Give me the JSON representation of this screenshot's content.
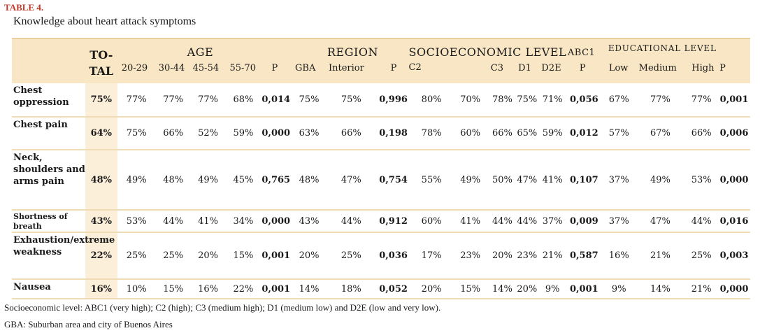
{
  "table_label": "TABLE 4.",
  "table_title": "Knowledge about heart attack symptoms",
  "headers": {
    "total_line1": "TO-",
    "total_line2": "TAL",
    "age_group": "AGE",
    "region_group": "REGION",
    "socio_group": "SOCIOECONOMIC LEVEL",
    "socio_abc1": "ABC1",
    "edu_group": "EDUCATIONAL LEVEL",
    "age_cols": [
      "20-29",
      "30-44",
      "45-54",
      "55-70",
      "P"
    ],
    "region_cols": [
      "GBA",
      "Interior",
      "P"
    ],
    "socio_cols": [
      "C2",
      "C3",
      "D1",
      "D2E",
      "P"
    ],
    "edu_cols": [
      "Low",
      "Medium",
      "High",
      "P"
    ]
  },
  "rows": [
    {
      "label": "Chest oppression",
      "cells": [
        "75%",
        "77%",
        "77%",
        "77%",
        "68%",
        "0,014",
        "75%",
        "75%",
        "0,996",
        "80%",
        "70%",
        "78%",
        "75%",
        "71%",
        "0,056",
        "67%",
        "77%",
        "77%",
        "0,001"
      ]
    },
    {
      "label": "Chest pain",
      "cells": [
        "64%",
        "75%",
        "66%",
        "52%",
        "59%",
        "0,000",
        "63%",
        "66%",
        "0,198",
        "78%",
        "60%",
        "66%",
        "65%",
        "59%",
        "0,012",
        "57%",
        "67%",
        "66%",
        "0,006"
      ]
    },
    {
      "label": "Neck, shoulders and arms pain",
      "cells": [
        "48%",
        "49%",
        "48%",
        "49%",
        "45%",
        "0,765",
        "48%",
        "47%",
        "0,754",
        "55%",
        "49%",
        "50%",
        "47%",
        "41%",
        "0,107",
        "37%",
        "49%",
        "53%",
        "0,000"
      ]
    },
    {
      "label": "Shortness of breath",
      "cells": [
        "43%",
        "53%",
        "44%",
        "41%",
        "34%",
        "0,000",
        "43%",
        "44%",
        "0,912",
        "60%",
        "41%",
        "44%",
        "44%",
        "37%",
        "0,009",
        "37%",
        "47%",
        "44%",
        "0,016"
      ]
    },
    {
      "label": "Exhaustion/extreme weakness",
      "cells": [
        "22%",
        "25%",
        "25%",
        "20%",
        "15%",
        "0,001",
        "20%",
        "25%",
        "0,036",
        "17%",
        "23%",
        "20%",
        "23%",
        "21%",
        "0,587",
        "16%",
        "21%",
        "25%",
        "0,003"
      ]
    },
    {
      "label": "Nausea",
      "cells": [
        "16%",
        "10%",
        "15%",
        "16%",
        "22%",
        "0,001",
        "14%",
        "18%",
        "0,052",
        "20%",
        "15%",
        "14%",
        "20%",
        "9%",
        "0,001",
        "9%",
        "14%",
        "21%",
        "0,000"
      ]
    }
  ],
  "footnotes": [
    "Socioeconomic level: ABC1 (very high); C2 (high); C3 (medium high); D1 (medium low) and D2E (low and very low).",
    "GBA: Suburban area and city of Buenos Aires"
  ]
}
